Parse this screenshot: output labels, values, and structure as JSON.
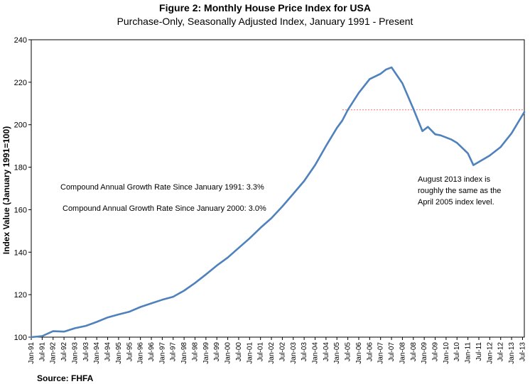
{
  "chart_data": {
    "type": "line",
    "title": "Figure 2: Monthly House Price Index for USA",
    "subtitle": "Purchase-Only, Seasonally Adjusted Index, January 1991 - Present",
    "ylabel": "Index Value (January 1991=100)",
    "xlabel": "",
    "ylim": [
      100,
      240
    ],
    "yticks": [
      100,
      120,
      140,
      160,
      180,
      200,
      220,
      240
    ],
    "xlim": [
      "Jan-91",
      "Aug-13"
    ],
    "xtick_labels": [
      "Jan-91",
      "Jul-91",
      "Jan-92",
      "Jul-92",
      "Jan-93",
      "Jul-93",
      "Jan-94",
      "Jul-94",
      "Jan-95",
      "Jul-95",
      "Jan-96",
      "Jul-96",
      "Jan-97",
      "Jul-97",
      "Jan-98",
      "Jul-98",
      "Jan-99",
      "Jul-99",
      "Jan-00",
      "Jul-00",
      "Jan-01",
      "Jul-01",
      "Jan-02",
      "Jul-02",
      "Jan-03",
      "Jul-03",
      "Jan-04",
      "Jul-04",
      "Jan-05",
      "Jul-05",
      "Jan-06",
      "Jul-06",
      "Jan-07",
      "Jul-07",
      "Jan-08",
      "Jul-08",
      "Jan-09",
      "Jul-09",
      "Jan-10",
      "Jul-10",
      "Jan-11",
      "Jul-11",
      "Jan-12",
      "Jul-12",
      "Jan-13",
      "Jul-13"
    ],
    "grid": false,
    "series_color": "#4f81bd",
    "reference_color": "#e46c6c",
    "series": [
      {
        "x": [
          "Jan-91",
          "Jul-91",
          "Jan-92",
          "Jul-92",
          "Jan-93",
          "Jul-93",
          "Jan-94",
          "Jul-94",
          "Jan-95",
          "Jul-95",
          "Jan-96",
          "Jul-96",
          "Jan-97",
          "Jul-97",
          "Jan-98",
          "Jul-98",
          "Jan-99",
          "Jul-99",
          "Jan-00",
          "Jul-00",
          "Jan-01",
          "Jul-01",
          "Jan-02",
          "Jul-02",
          "Jan-03",
          "Jul-03",
          "Jan-04",
          "Jul-04",
          "Jan-05",
          "Apr-05",
          "Jul-05",
          "Jan-06",
          "Jul-06",
          "Jan-07",
          "Apr-07",
          "Jul-07",
          "Jan-08",
          "Jul-08",
          "Dec-08",
          "Mar-09",
          "Jul-09",
          "Oct-09",
          "Jan-10",
          "Apr-10",
          "Jul-10",
          "Jan-11",
          "Apr-11",
          "Jul-11",
          "Oct-11",
          "Jan-12",
          "Jul-12",
          "Jan-13",
          "Aug-13"
        ],
        "values": [
          100.0,
          100.5,
          102.8,
          102.6,
          104.2,
          105.3,
          107.2,
          109.3,
          110.7,
          112.0,
          114.2,
          115.9,
          117.6,
          119.0,
          121.9,
          125.5,
          129.5,
          133.7,
          137.5,
          142.0,
          146.5,
          151.5,
          156.0,
          161.5,
          167.5,
          173.5,
          181.0,
          190.0,
          198.5,
          202.0,
          207.0,
          215.0,
          221.5,
          224.0,
          226.0,
          227.0,
          219.5,
          207.5,
          197.0,
          199.0,
          195.5,
          195.0,
          194.0,
          193.0,
          191.5,
          186.5,
          181.0,
          182.5,
          184.0,
          185.5,
          189.5,
          196.0,
          206.0
        ]
      }
    ],
    "reference_line": {
      "from": "Apr-05",
      "to": "Aug-13",
      "value": 207.0
    },
    "annotations": [
      "Compound Annual Growth Rate Since January 1991:  3.3%",
      "Compound Annual Growth Rate Since January 2000:  3.0%",
      "August 2013 index is",
      "roughly the same as the",
      "April 2005 index level."
    ],
    "source": "Source: FHFA"
  }
}
